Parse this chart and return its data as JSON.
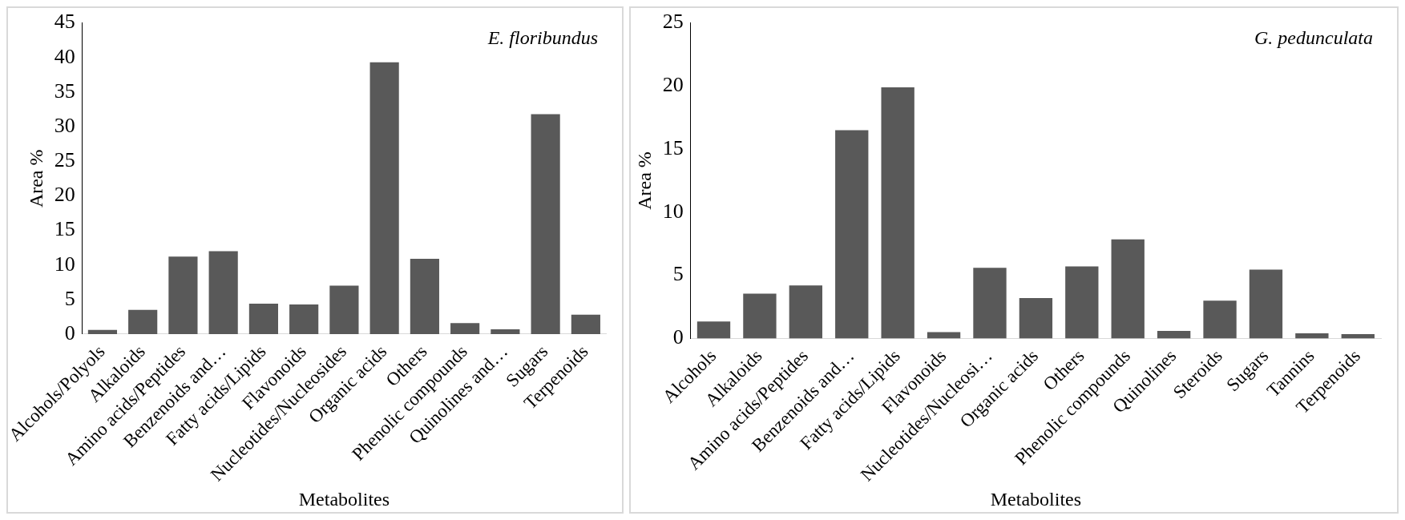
{
  "chart_data": [
    {
      "type": "bar",
      "title": "E. floribundus",
      "xlabel": "Metabolites",
      "ylabel": "Area %",
      "categories": [
        "Alcohols/Polyols",
        "Alkaloids",
        "Amino acids/Peptides",
        "Benzenoids and…",
        "Fatty acids/Lipids",
        "Flavonoids",
        "Nucleotides/Nucleosides",
        "Organic acids",
        "Others",
        "Phenolic compounds",
        "Quinolines and…",
        "Sugars",
        "Terpenoids"
      ],
      "values": [
        0.6,
        3.5,
        11.2,
        12.0,
        4.4,
        4.3,
        7.0,
        39.3,
        10.9,
        1.6,
        0.7,
        31.8,
        2.8
      ],
      "color": "#595959",
      "ylim": [
        0,
        45
      ],
      "yticks": [
        0,
        5,
        10,
        15,
        20,
        25,
        30,
        35,
        40,
        45
      ],
      "grid": false,
      "legend": false
    },
    {
      "type": "bar",
      "title": "G. pedunculata",
      "xlabel": "Metabolites",
      "ylabel": "Area %",
      "categories": [
        "Alcohols",
        "Alkaloids",
        "Amino acids/Peptides",
        "Benzenoids and…",
        "Fatty acids/Lipids",
        "Flavonoids",
        "Nucleotides/Nucleosi…",
        "Organic acids",
        "Others",
        "Phenolic compounds",
        "Quinolines",
        "Steroids",
        "Sugars",
        "Tannins",
        "Terpenoids"
      ],
      "values": [
        1.35,
        3.55,
        4.2,
        16.5,
        19.9,
        0.5,
        5.6,
        3.2,
        5.7,
        7.85,
        0.6,
        3.0,
        5.45,
        0.4,
        0.35
      ],
      "color": "#595959",
      "ylim": [
        0,
        25
      ],
      "yticks": [
        0,
        5,
        10,
        15,
        20,
        25
      ],
      "grid": false,
      "legend": false
    }
  ]
}
